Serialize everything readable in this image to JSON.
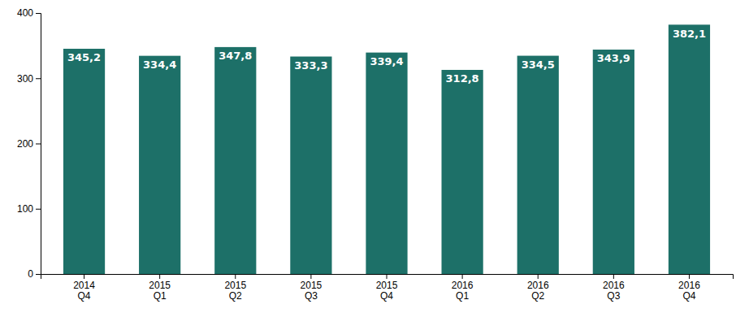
{
  "chart_data": {
    "type": "bar",
    "categories": [
      "2014\nQ4",
      "2015\nQ1",
      "2015\nQ2",
      "2015\nQ3",
      "2015\nQ4",
      "2016\nQ1",
      "2016\nQ2",
      "2016\nQ3",
      "2016\nQ4"
    ],
    "values": [
      345.2,
      334.4,
      347.8,
      333.3,
      339.4,
      312.8,
      334.5,
      343.9,
      382.1
    ],
    "value_labels": [
      "345,2",
      "334,4",
      "347,8",
      "333,3",
      "339,4",
      "312,8",
      "334,5",
      "343,9",
      "382,1"
    ],
    "color": "#1d7068",
    "ylim": [
      0,
      400
    ],
    "yticks": [
      0,
      100,
      200,
      300,
      400
    ],
    "grid": false,
    "data_labels": true
  }
}
